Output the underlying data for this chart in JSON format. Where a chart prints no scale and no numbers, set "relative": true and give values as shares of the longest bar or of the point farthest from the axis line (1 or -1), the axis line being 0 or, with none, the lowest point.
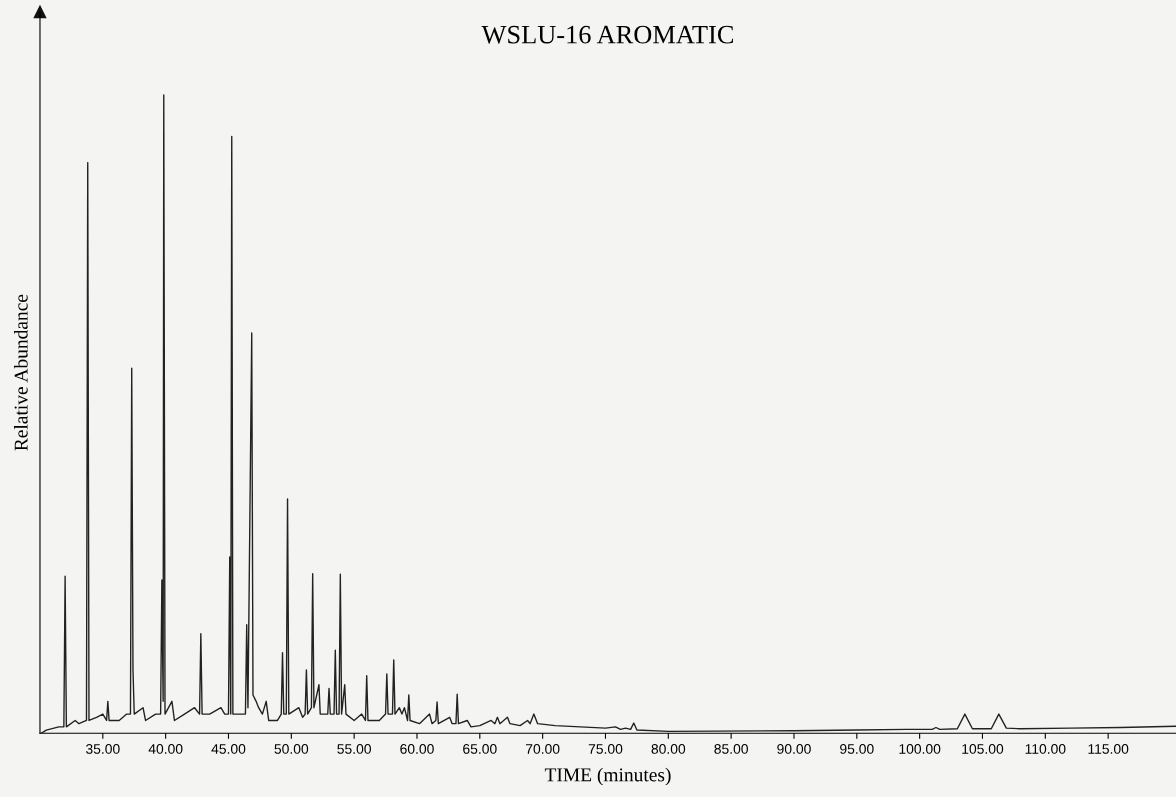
{
  "chart_data": {
    "type": "line",
    "title": "WSLU-16 AROMATIC",
    "xlabel": "TIME (minutes)",
    "ylabel": "Relative Abundance",
    "relative": true,
    "xlim": [
      30,
      120.4
    ],
    "xticks": [
      {
        "value": 35,
        "label": "35.00"
      },
      {
        "value": 40,
        "label": "40.00"
      },
      {
        "value": 45,
        "label": "45.00"
      },
      {
        "value": 50,
        "label": "50.00"
      },
      {
        "value": 55,
        "label": "55.00"
      },
      {
        "value": 60,
        "label": "60.00"
      },
      {
        "value": 65,
        "label": "65.00"
      },
      {
        "value": 70,
        "label": "70.00"
      },
      {
        "value": 75,
        "label": "75.00"
      },
      {
        "value": 80,
        "label": "80.00"
      },
      {
        "value": 85,
        "label": "85.00"
      },
      {
        "value": 90,
        "label": "90.00"
      },
      {
        "value": 95,
        "label": "95.00"
      },
      {
        "value": 100,
        "label": "100.00"
      },
      {
        "value": 105,
        "label": "105.00"
      },
      {
        "value": 110,
        "label": "110.00"
      },
      {
        "value": 115,
        "label": "115.00"
      }
    ],
    "grid": false,
    "legend": false,
    "marker": "none",
    "line_style": "solid",
    "series": [
      {
        "color": "#222222",
        "x": [
          30.1,
          30.5,
          31.5,
          31.9,
          32.0,
          32.1,
          32.8,
          33.1,
          33.7,
          33.8,
          33.9,
          34.5,
          35.0,
          35.3,
          35.4,
          35.5,
          36.3,
          36.9,
          37.2,
          37.3,
          37.4,
          37.5,
          38.2,
          38.4,
          39.2,
          39.6,
          39.7,
          39.8,
          39.85,
          39.95,
          40.5,
          40.7,
          41.5,
          42.3,
          42.7,
          42.8,
          42.9,
          43.5,
          44.4,
          44.7,
          45.0,
          45.1,
          45.18,
          45.26,
          45.35,
          46.0,
          46.35,
          46.45,
          46.55,
          46.85,
          46.95,
          47.2,
          47.4,
          47.7,
          48.0,
          48.2,
          48.9,
          49.2,
          49.3,
          49.4,
          49.6,
          49.7,
          49.8,
          50.6,
          50.9,
          51.1,
          51.2,
          51.3,
          51.6,
          51.7,
          51.8,
          52.2,
          52.3,
          52.9,
          53.0,
          53.1,
          53.4,
          53.5,
          53.6,
          53.8,
          53.9,
          54.0,
          54.25,
          54.35,
          55.0,
          55.6,
          55.9,
          56.0,
          56.1,
          57.0,
          57.5,
          57.6,
          57.7,
          58.05,
          58.15,
          58.25,
          58.6,
          58.8,
          59.0,
          59.25,
          59.35,
          59.45,
          60.2,
          61.0,
          61.2,
          61.5,
          61.6,
          61.7,
          62.6,
          62.8,
          63.1,
          63.2,
          63.3,
          64.0,
          64.3,
          65.0,
          65.9,
          66.2,
          66.4,
          66.6,
          67.2,
          67.4,
          68.2,
          68.8,
          69.0,
          69.3,
          69.6,
          71.0,
          73.0,
          75.0,
          75.8,
          76.2,
          76.6,
          77.0,
          77.25,
          77.5,
          80.0,
          90.0,
          95.0,
          99.0,
          101.0,
          101.3,
          101.6,
          103.0,
          103.6,
          104.2,
          105.7,
          106.3,
          106.9,
          108.0,
          112.0,
          116.0,
          120.4
        ],
        "values": [
          0,
          0.005,
          0.01,
          0.01,
          0.246,
          0.01,
          0.02,
          0.015,
          0.02,
          0.894,
          0.02,
          0.025,
          0.03,
          0.02,
          0.05,
          0.02,
          0.02,
          0.03,
          0.03,
          0.572,
          0.1,
          0.03,
          0.04,
          0.02,
          0.03,
          0.03,
          0.24,
          0.05,
          1.0,
          0.03,
          0.05,
          0.02,
          0.03,
          0.04,
          0.03,
          0.156,
          0.03,
          0.03,
          0.04,
          0.03,
          0.03,
          0.276,
          0.03,
          0.935,
          0.03,
          0.03,
          0.03,
          0.17,
          0.04,
          0.627,
          0.06,
          0.05,
          0.04,
          0.03,
          0.05,
          0.02,
          0.02,
          0.03,
          0.126,
          0.03,
          0.03,
          0.367,
          0.03,
          0.04,
          0.025,
          0.03,
          0.099,
          0.03,
          0.04,
          0.25,
          0.04,
          0.076,
          0.03,
          0.03,
          0.07,
          0.03,
          0.03,
          0.13,
          0.03,
          0.03,
          0.249,
          0.03,
          0.076,
          0.03,
          0.02,
          0.03,
          0.02,
          0.09,
          0.02,
          0.02,
          0.03,
          0.093,
          0.03,
          0.03,
          0.115,
          0.03,
          0.04,
          0.03,
          0.04,
          0.02,
          0.06,
          0.02,
          0.015,
          0.03,
          0.015,
          0.02,
          0.049,
          0.015,
          0.025,
          0.015,
          0.015,
          0.061,
          0.015,
          0.02,
          0.01,
          0.012,
          0.02,
          0.015,
          0.025,
          0.015,
          0.025,
          0.015,
          0.012,
          0.02,
          0.015,
          0.03,
          0.015,
          0.012,
          0.01,
          0.008,
          0.01,
          0.006,
          0.008,
          0.006,
          0.016,
          0.005,
          0.003,
          0.004,
          0.005,
          0.006,
          0.006,
          0.009,
          0.006,
          0.007,
          0.03,
          0.007,
          0.007,
          0.03,
          0.008,
          0.007,
          0.008,
          0.009,
          0.011
        ]
      }
    ]
  }
}
